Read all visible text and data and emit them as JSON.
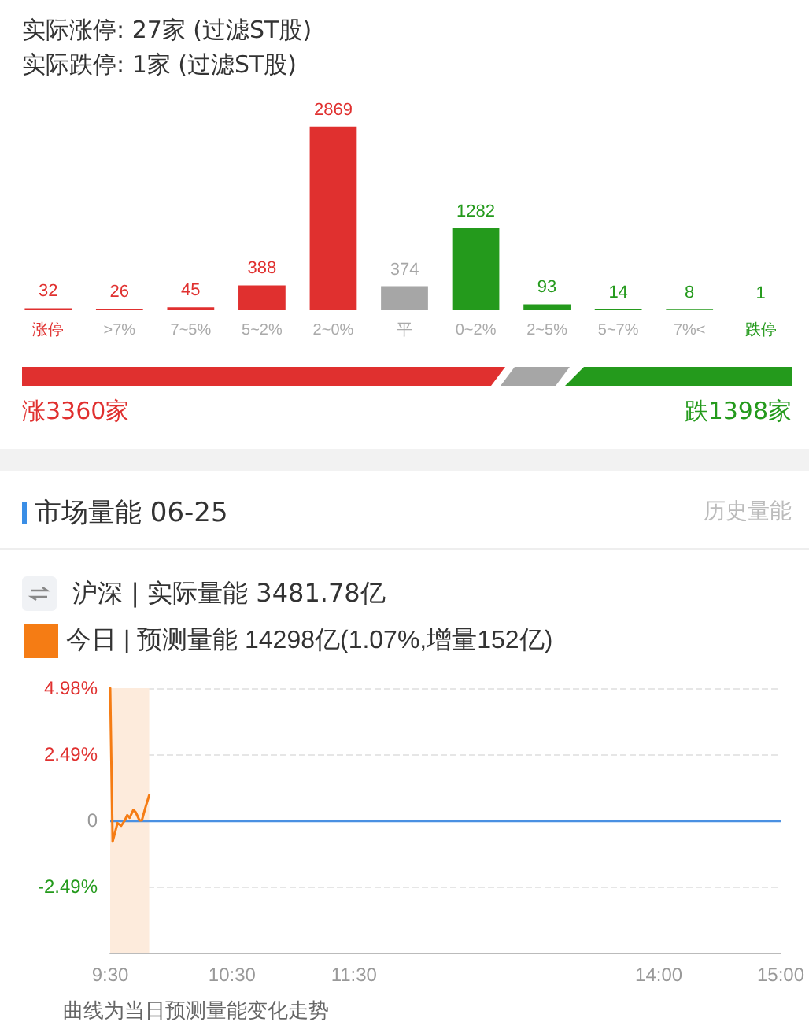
{
  "chart_data": [
    {
      "type": "bar",
      "annotations": [
        "实际涨停: 27家 (过滤ST股)",
        "实际跌停: 1家 (过滤ST股)",
        "涨3360家",
        "跌1398家"
      ],
      "categories": [
        "涨停",
        ">7%",
        "7~5%",
        "5~2%",
        "2~0%",
        "平",
        "0~2%",
        "2~5%",
        "5~7%",
        "7%<",
        "跌停"
      ],
      "values": [
        32,
        26,
        45,
        388,
        2869,
        374,
        1282,
        93,
        14,
        8,
        1
      ],
      "colors": [
        "#e0302f",
        "#e0302f",
        "#e0302f",
        "#e0302f",
        "#e0302f",
        "#a6a6a6",
        "#249a1c",
        "#249a1c",
        "#249a1c",
        "#249a1c",
        "#249a1c"
      ],
      "data_labels": true
    },
    {
      "type": "line",
      "title": "市场量能 06-25",
      "annotations": [
        "历史量能",
        "沪深 | 实际量能 3481.78亿",
        "曲线为当日预测量能变化走势"
      ],
      "legend": "top left",
      "series": [
        {
          "name": "今日 | 预测量能 14298亿(1.07%,增量152亿)",
          "color": "#f57c14",
          "x": [
            9.5,
            9.52,
            9.56,
            9.59,
            9.62,
            9.64,
            9.66,
            9.69,
            9.71,
            9.74,
            9.76,
            9.79,
            9.82
          ],
          "values": [
            4.98,
            -0.8,
            -0.1,
            -0.2,
            0,
            0.2,
            0.1,
            0.4,
            0.3,
            0,
            0,
            0.5,
            0.95
          ]
        }
      ],
      "xlim": [
        9.5,
        15
      ],
      "xticks": [
        {
          "value": 9.5,
          "label": "9:30"
        },
        {
          "value": 10.5,
          "label": "10:30"
        },
        {
          "value": 11.5,
          "label": "11:30"
        },
        {
          "value": 14,
          "label": "14:00"
        },
        {
          "value": 15,
          "label": "15:00"
        }
      ],
      "ylim": [
        -4.98,
        4.98
      ],
      "yticks": [
        {
          "value": -2.49,
          "label": "-2.49%"
        },
        {
          "value": 0,
          "label": "0"
        },
        {
          "value": 2.49,
          "label": "2.49%"
        },
        {
          "value": 4.98,
          "label": "4.98%"
        }
      ],
      "grid": "y",
      "ref_lines": [
        {
          "axis": "y",
          "value": 0,
          "color": "#4a90e2"
        }
      ],
      "bands": [
        {
          "axis": "x",
          "from": 9.5,
          "to": 9.82,
          "color": "#fdebdc"
        }
      ]
    }
  ]
}
